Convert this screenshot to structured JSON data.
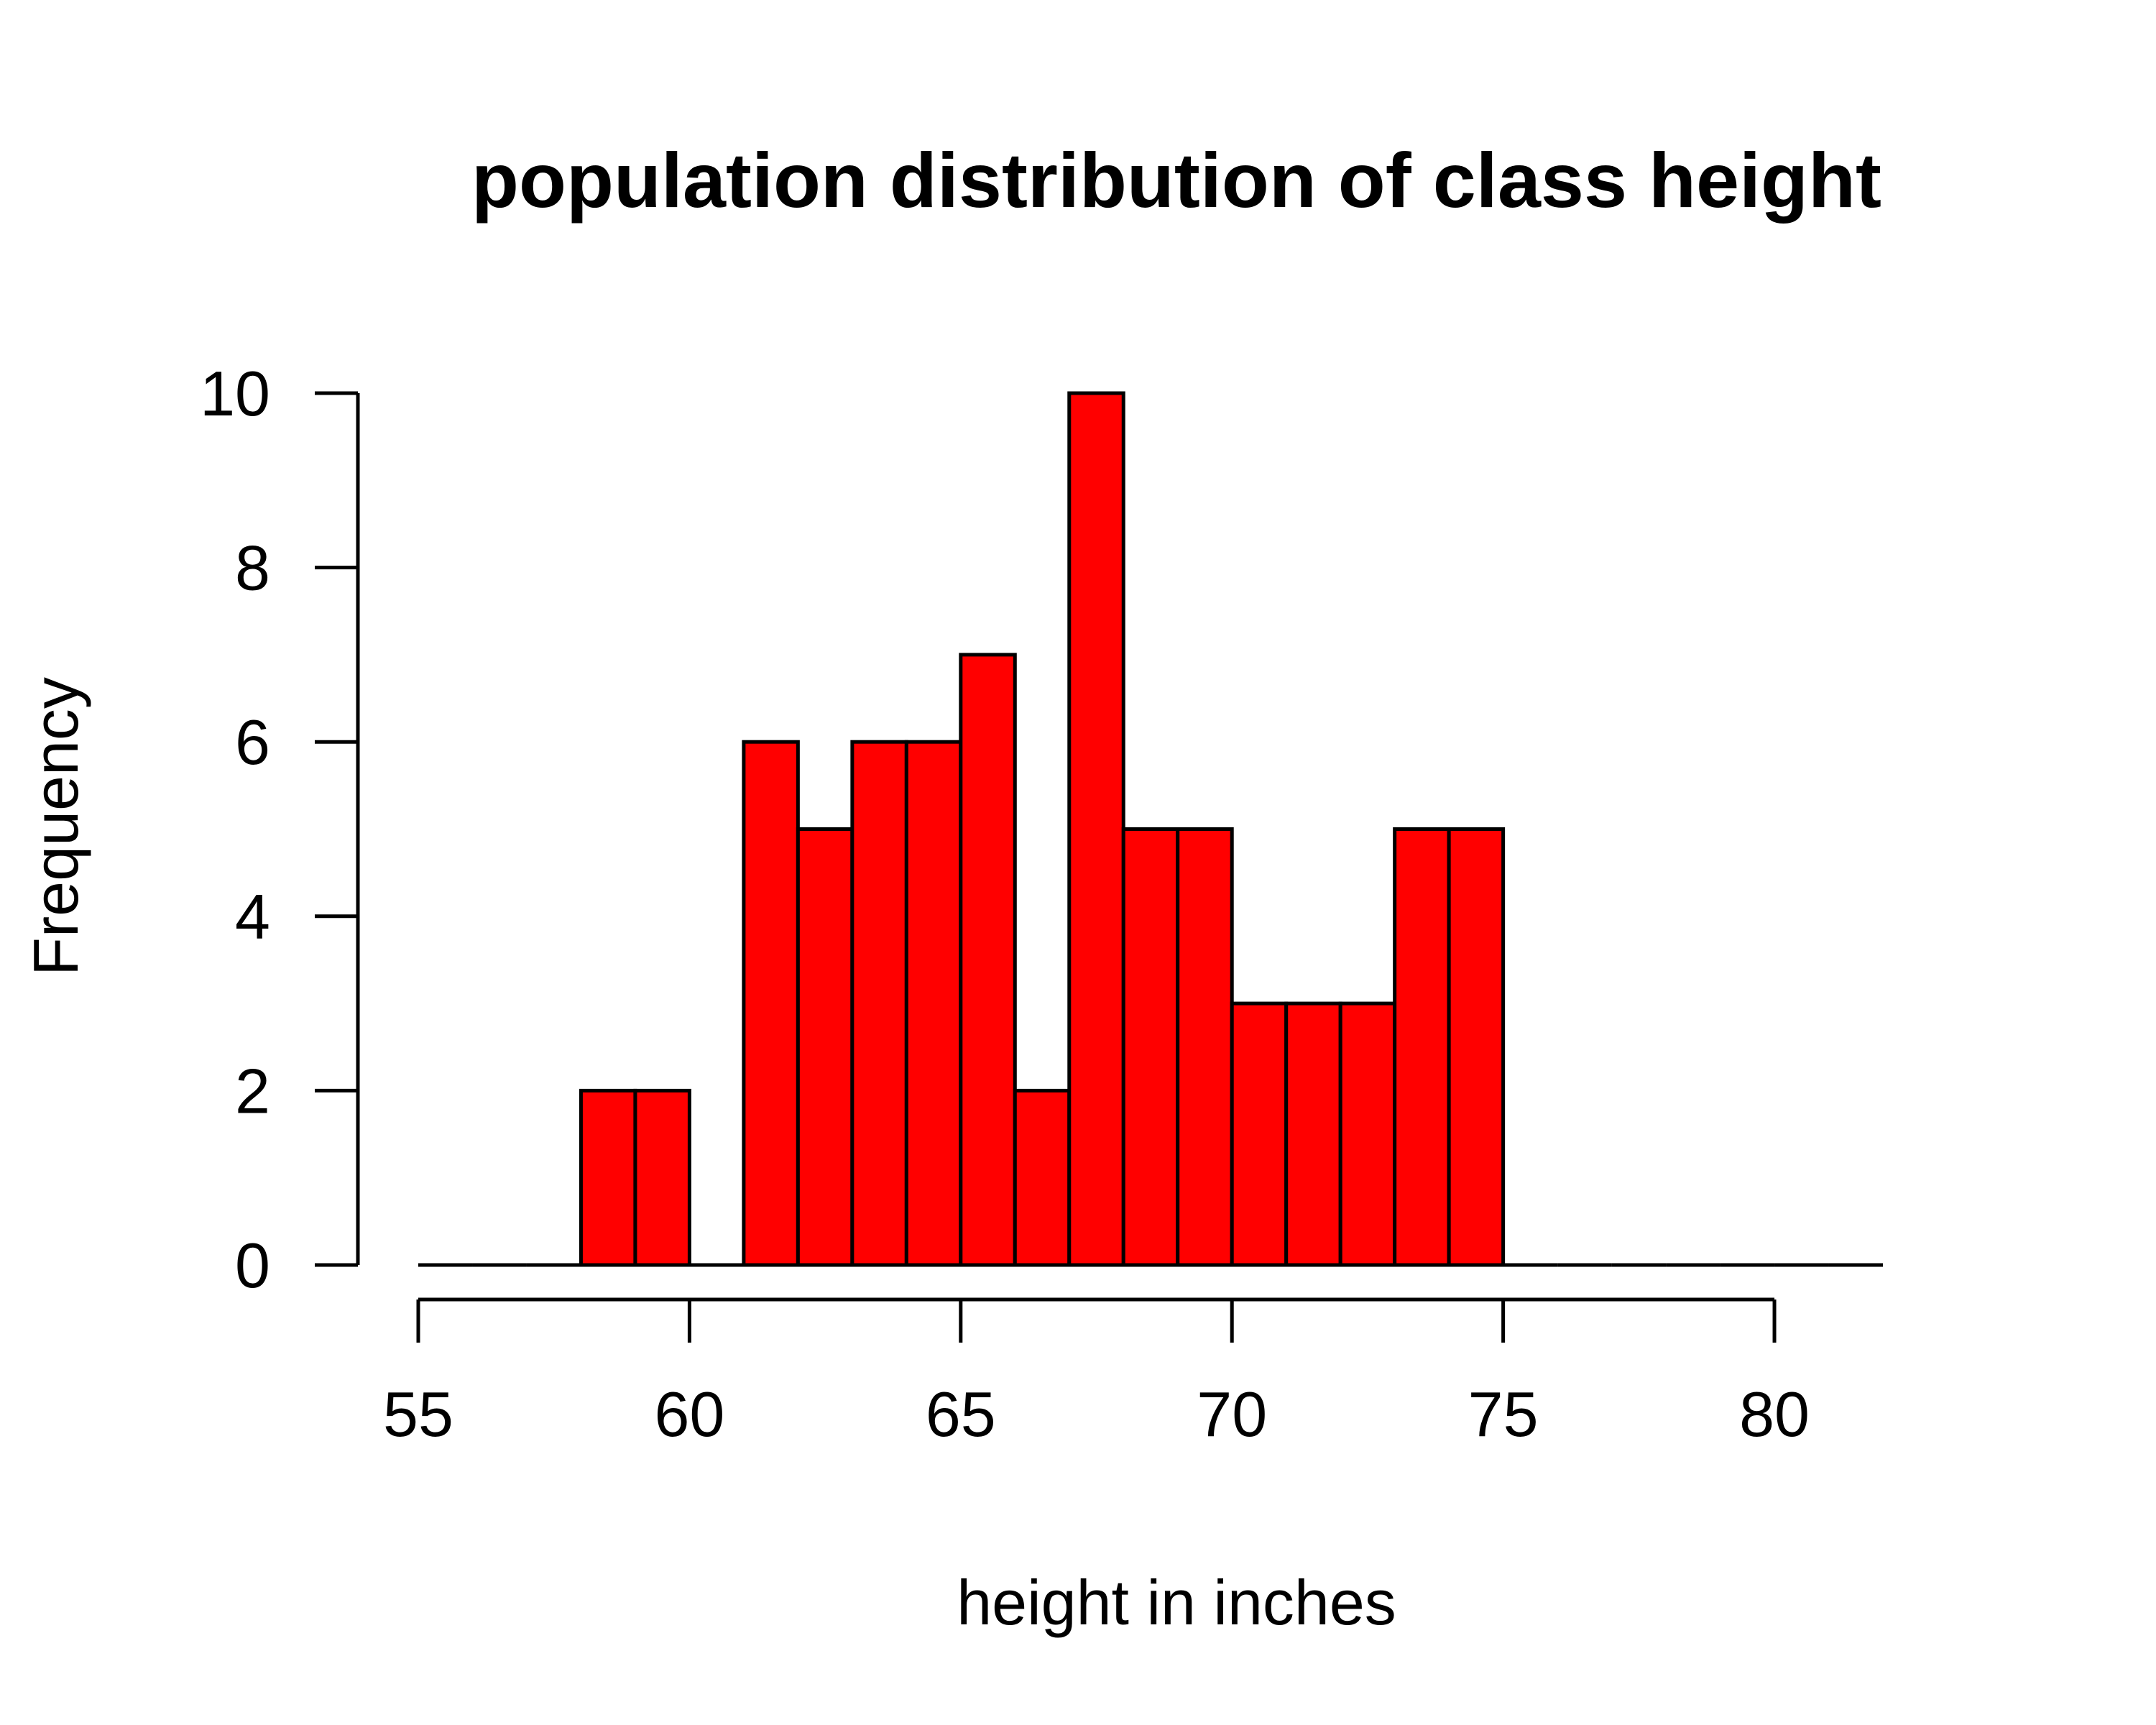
{
  "chart_data": {
    "type": "bar",
    "title": "population distribution of class height",
    "xlabel": "height in inches",
    "ylabel": "Frequency",
    "xlim": [
      55,
      82
    ],
    "ylim": [
      0,
      10
    ],
    "x_ticks": [
      55,
      60,
      65,
      70,
      75,
      80
    ],
    "y_ticks": [
      0,
      2,
      4,
      6,
      8,
      10
    ],
    "bins": [
      {
        "start": 55,
        "end": 56,
        "count": 0
      },
      {
        "start": 56,
        "end": 57,
        "count": 0
      },
      {
        "start": 57,
        "end": 58,
        "count": 0
      },
      {
        "start": 58,
        "end": 59,
        "count": 2
      },
      {
        "start": 59,
        "end": 60,
        "count": 2
      },
      {
        "start": 60,
        "end": 61,
        "count": 0
      },
      {
        "start": 61,
        "end": 62,
        "count": 6
      },
      {
        "start": 62,
        "end": 63,
        "count": 5
      },
      {
        "start": 63,
        "end": 64,
        "count": 6
      },
      {
        "start": 64,
        "end": 65,
        "count": 6
      },
      {
        "start": 65,
        "end": 66,
        "count": 7
      },
      {
        "start": 66,
        "end": 67,
        "count": 2
      },
      {
        "start": 67,
        "end": 68,
        "count": 10
      },
      {
        "start": 68,
        "end": 69,
        "count": 5
      },
      {
        "start": 69,
        "end": 70,
        "count": 5
      },
      {
        "start": 70,
        "end": 71,
        "count": 3
      },
      {
        "start": 71,
        "end": 72,
        "count": 3
      },
      {
        "start": 72,
        "end": 73,
        "count": 3
      },
      {
        "start": 73,
        "end": 74,
        "count": 5
      },
      {
        "start": 74,
        "end": 75,
        "count": 5
      },
      {
        "start": 75,
        "end": 76,
        "count": 0
      },
      {
        "start": 76,
        "end": 77,
        "count": 0
      },
      {
        "start": 77,
        "end": 78,
        "count": 0
      },
      {
        "start": 78,
        "end": 79,
        "count": 0
      },
      {
        "start": 79,
        "end": 80,
        "count": 0
      },
      {
        "start": 80,
        "end": 81,
        "count": 0
      },
      {
        "start": 81,
        "end": 82,
        "count": 0
      }
    ],
    "bar_color": "#ff0000",
    "edge_color": "#000000",
    "grid": false,
    "legend": "none"
  }
}
